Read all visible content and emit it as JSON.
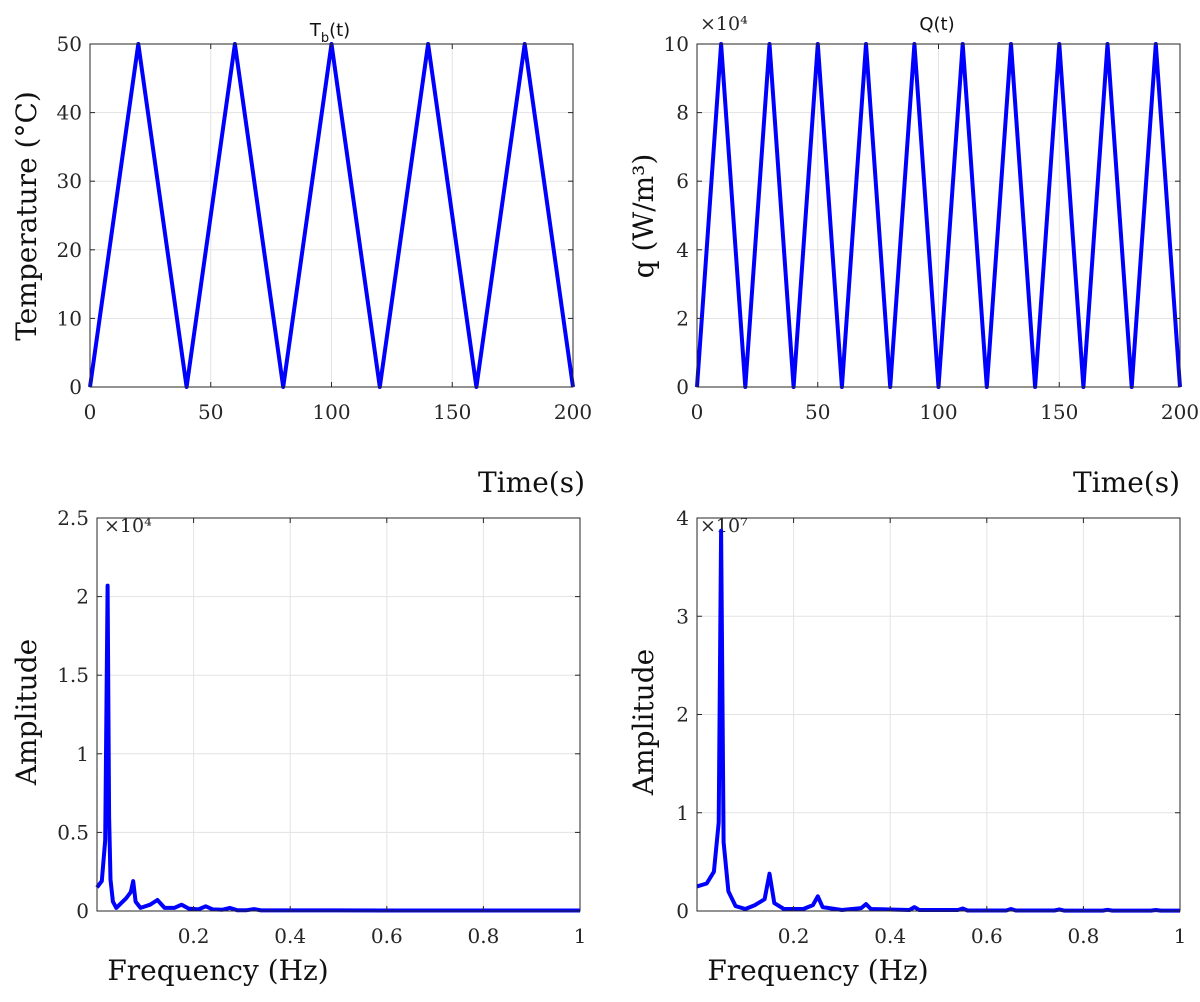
{
  "chart_data": [
    {
      "type": "line",
      "title_main": "T",
      "title_sub": "b",
      "title_tail": "(t)",
      "xlabel": "Time(s)",
      "ylabel": "Temperature (°C)",
      "xlim": [
        0,
        200
      ],
      "ylim": [
        0,
        50
      ],
      "xticks": [
        0,
        50,
        100,
        150,
        200
      ],
      "yticks": [
        0,
        10,
        20,
        30,
        40,
        50
      ],
      "xtick_labels": [
        "0",
        "50",
        "100",
        "150",
        "200"
      ],
      "ytick_labels": [
        "0",
        "10",
        "20",
        "30",
        "40",
        "50"
      ],
      "grid": true,
      "color": "#0000ff",
      "series": [
        {
          "x": [
            0,
            20,
            40,
            60,
            80,
            100,
            120,
            140,
            160,
            180,
            200
          ],
          "y": [
            0,
            50,
            0,
            50,
            0,
            50,
            0,
            50,
            0,
            50,
            0
          ]
        }
      ]
    },
    {
      "type": "line",
      "title": "Q(t)",
      "xlabel": "Time(s)",
      "ylabel": "q (W/m³)",
      "exponent": "×10⁴",
      "xlim": [
        0,
        200
      ],
      "ylim": [
        0,
        10
      ],
      "xticks": [
        0,
        50,
        100,
        150,
        200
      ],
      "yticks": [
        0,
        2,
        4,
        6,
        8,
        10
      ],
      "xtick_labels": [
        "0",
        "50",
        "100",
        "150",
        "200"
      ],
      "ytick_labels": [
        "0",
        "2",
        "4",
        "6",
        "8",
        "10"
      ],
      "grid": true,
      "color": "#0000ff",
      "series": [
        {
          "x": [
            0,
            10,
            20,
            30,
            40,
            50,
            60,
            70,
            80,
            90,
            100,
            110,
            120,
            130,
            140,
            150,
            160,
            170,
            180,
            190,
            200
          ],
          "y": [
            0,
            10,
            0,
            10,
            0,
            10,
            0,
            10,
            0,
            10,
            0,
            10,
            0,
            10,
            0,
            10,
            0,
            10,
            0,
            10,
            0
          ]
        }
      ]
    },
    {
      "type": "line",
      "xlabel": "Frequency (Hz)",
      "ylabel": "Amplitude",
      "exponent": "×10⁴",
      "xlim": [
        0,
        1
      ],
      "ylim": [
        0,
        2.5
      ],
      "xticks": [
        0.2,
        0.4,
        0.6,
        0.8,
        1
      ],
      "yticks": [
        0,
        0.5,
        1,
        1.5,
        2,
        2.5
      ],
      "xtick_labels": [
        "0.2",
        "0.4",
        "0.6",
        "0.8",
        "1"
      ],
      "ytick_labels": [
        "0",
        "0.5",
        "1",
        "1.5",
        "2",
        "2.5"
      ],
      "grid": true,
      "color": "#0000ff",
      "series": [
        {
          "x": [
            0,
            0.01,
            0.017,
            0.022,
            0.025,
            0.028,
            0.033,
            0.04,
            0.05,
            0.06,
            0.07,
            0.075,
            0.08,
            0.09,
            0.11,
            0.125,
            0.14,
            0.16,
            0.175,
            0.19,
            0.21,
            0.225,
            0.24,
            0.26,
            0.275,
            0.29,
            0.31,
            0.325,
            0.34,
            0.5,
            0.7,
            0.9,
            1
          ],
          "y": [
            0.15,
            0.19,
            0.45,
            2.07,
            0.6,
            0.2,
            0.06,
            0.02,
            0.05,
            0.08,
            0.12,
            0.19,
            0.06,
            0.02,
            0.04,
            0.07,
            0.02,
            0.02,
            0.04,
            0.015,
            0.01,
            0.03,
            0.01,
            0.008,
            0.02,
            0.005,
            0.005,
            0.012,
            0.004,
            0.004,
            0.003,
            0.003,
            0.003
          ]
        }
      ]
    },
    {
      "type": "line",
      "xlabel": "Frequency (Hz)",
      "ylabel": "Amplitude",
      "exponent": "×10⁷",
      "xlim": [
        0,
        1
      ],
      "ylim": [
        0,
        4
      ],
      "xticks": [
        0.2,
        0.4,
        0.6,
        0.8,
        1
      ],
      "yticks": [
        0,
        1,
        2,
        3,
        4
      ],
      "xtick_labels": [
        "0.2",
        "0.4",
        "0.6",
        "0.8",
        "1"
      ],
      "ytick_labels": [
        "0",
        "1",
        "2",
        "3",
        "4"
      ],
      "grid": true,
      "color": "#0000ff",
      "series": [
        {
          "x": [
            0,
            0.02,
            0.035,
            0.045,
            0.05,
            0.055,
            0.065,
            0.08,
            0.1,
            0.12,
            0.14,
            0.15,
            0.16,
            0.18,
            0.22,
            0.24,
            0.25,
            0.26,
            0.3,
            0.34,
            0.35,
            0.36,
            0.44,
            0.45,
            0.46,
            0.54,
            0.55,
            0.56,
            0.64,
            0.65,
            0.66,
            0.74,
            0.75,
            0.76,
            0.84,
            0.85,
            0.86,
            0.94,
            0.95,
            0.96,
            1
          ],
          "y": [
            0.25,
            0.28,
            0.4,
            0.9,
            3.87,
            0.7,
            0.2,
            0.05,
            0.02,
            0.06,
            0.12,
            0.38,
            0.08,
            0.02,
            0.02,
            0.06,
            0.15,
            0.04,
            0.01,
            0.03,
            0.07,
            0.02,
            0.01,
            0.04,
            0.01,
            0.01,
            0.025,
            0.005,
            0.005,
            0.02,
            0.005,
            0.005,
            0.015,
            0.004,
            0.004,
            0.012,
            0.004,
            0.004,
            0.01,
            0.004,
            0.004
          ]
        }
      ]
    }
  ]
}
